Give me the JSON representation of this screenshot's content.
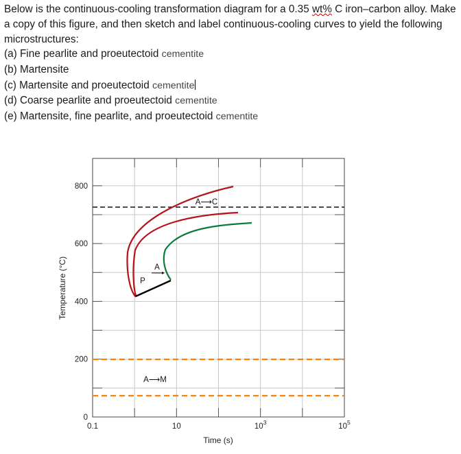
{
  "question": {
    "intro_a": "Below is the continuous-cooling transformation diagram for a 0.35 ",
    "intro_unit": "wt%",
    "intro_b": " C iron–carbon alloy. Make a copy of this figure, and then sketch and label continuous-cooling curves to yield the following microstructures:",
    "items": [
      {
        "head": "(a) Fine pearlite and proeutectoid ",
        "tail": "cementite"
      },
      {
        "head": "(b) Martensite",
        "tail": ""
      },
      {
        "head": "(c) Martensite and proeutectoid ",
        "tail": "cementite"
      },
      {
        "head": "(d) Coarse pearlite and proeutectoid ",
        "tail": "cementite"
      },
      {
        "head": "(e) Martensite, fine pearlite, and proeutectoid ",
        "tail": "cementite"
      }
    ]
  },
  "chart_data": {
    "type": "line",
    "ylabel": "Temperature (°C)",
    "xlabel": "Time (s)",
    "yticks": [
      "0",
      "200",
      "400",
      "600",
      "800"
    ],
    "xticks": [
      {
        "base": "0.1",
        "exp": ""
      },
      {
        "base": "10",
        "exp": ""
      },
      {
        "base": "10",
        "exp": "3"
      },
      {
        "base": "10",
        "exp": "5"
      }
    ],
    "x_scale": "log",
    "xlim": [
      0.1,
      100000
    ],
    "ylim": [
      0,
      850
    ],
    "reference_lines": [
      {
        "temperature": 727,
        "style": "black dashed"
      },
      {
        "temperature": 215,
        "style": "orange dashed"
      },
      {
        "temperature": 80,
        "style": "orange dashed"
      }
    ],
    "annotations": [
      "A⟶C",
      "A",
      "P",
      "A⟶M"
    ],
    "colors": {
      "finish_curve": "#b5121b",
      "ferrite_curve": "#0d7a3a",
      "stop_line": "#000000",
      "ms_lines": "#ff7f00"
    }
  }
}
